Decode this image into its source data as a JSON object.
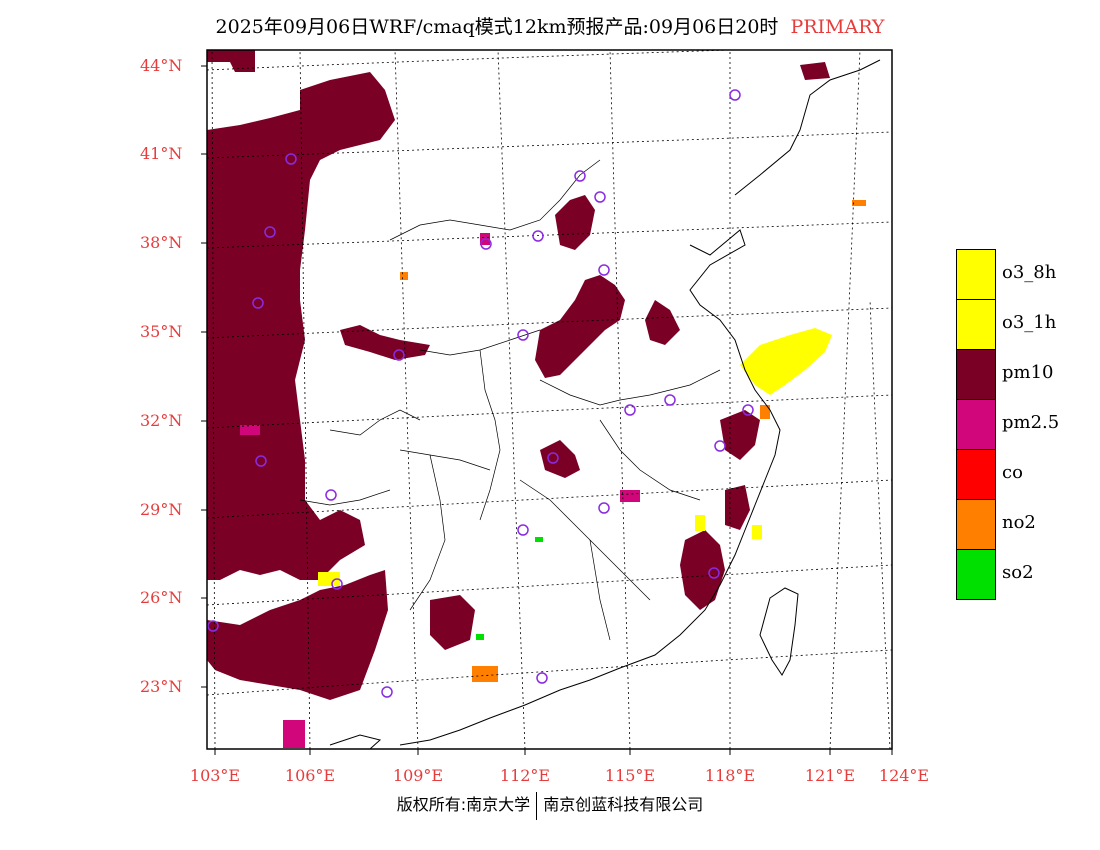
{
  "header": {
    "title": "2025年09月06日WRF/cmaq模式12km预报产品:09月06日20时",
    "tag": "PRIMARY"
  },
  "map": {
    "lat_labels": [
      "44°N",
      "41°N",
      "38°N",
      "35°N",
      "32°N",
      "29°N",
      "26°N",
      "23°N"
    ],
    "lon_labels": [
      "103°E",
      "106°E",
      "109°E",
      "112°E",
      "115°E",
      "118°E",
      "121°E",
      "124°E"
    ]
  },
  "legend": [
    {
      "label": "o3_8h",
      "color": "#ffff00"
    },
    {
      "label": "o3_1h",
      "color": "#ffff00"
    },
    {
      "label": "pm10",
      "color": "#7a0026"
    },
    {
      "label": "pm2.5",
      "color": "#d0067a"
    },
    {
      "label": "co",
      "color": "#ff0000"
    },
    {
      "label": "no2",
      "color": "#ff8000"
    },
    {
      "label": "so2",
      "color": "#00e000"
    }
  ],
  "footer": {
    "left": "版权所有:南京大学",
    "right": "南京创蓝科技有限公司"
  },
  "colors": {
    "pm10": "#7a0026",
    "pm25": "#d0067a",
    "o3": "#ffff00",
    "no2": "#ff8000",
    "so2": "#00e000",
    "station": "#8a2be2",
    "label_red": "#e63c3c"
  }
}
